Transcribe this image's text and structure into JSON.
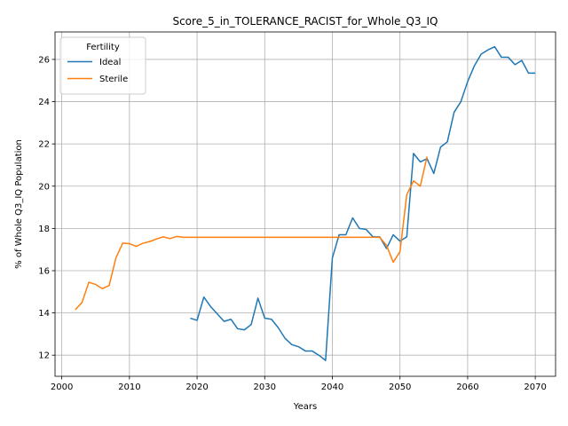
{
  "chart_data": {
    "type": "line",
    "title": "Score_5_in_TOLERANCE_RACIST_for_Whole_Q3_IQ",
    "xlabel": "Years",
    "ylabel": "% of Whole Q3_IQ Population",
    "xlim": [
      1999,
      2073
    ],
    "ylim": [
      11.0,
      27.3
    ],
    "xticks": [
      2000,
      2010,
      2020,
      2030,
      2040,
      2050,
      2060,
      2070
    ],
    "yticks": [
      12,
      14,
      16,
      18,
      20,
      22,
      24,
      26
    ],
    "grid": true,
    "legend": {
      "title": "Fertility",
      "placement": "upper-left"
    },
    "series": [
      {
        "name": "Ideal",
        "color": "#1f77b4",
        "x": [
          2019,
          2020,
          2021,
          2022,
          2023,
          2024,
          2025,
          2026,
          2027,
          2028,
          2029,
          2030,
          2031,
          2032,
          2033,
          2034,
          2035,
          2036,
          2037,
          2038,
          2039,
          2040,
          2041,
          2042,
          2043,
          2044,
          2045,
          2046,
          2047,
          2048,
          2049,
          2050,
          2051,
          2052,
          2053,
          2054,
          2055,
          2056,
          2057,
          2058,
          2059,
          2060,
          2061,
          2062,
          2063,
          2064,
          2065,
          2066,
          2067,
          2068,
          2069,
          2070
        ],
        "values": [
          13.75,
          13.65,
          14.75,
          14.3,
          13.95,
          13.6,
          13.7,
          13.25,
          13.2,
          13.45,
          14.7,
          13.75,
          13.7,
          13.3,
          12.8,
          12.5,
          12.4,
          12.2,
          12.2,
          12.0,
          11.75,
          16.6,
          17.7,
          17.7,
          18.5,
          18.0,
          17.95,
          17.6,
          17.6,
          17.05,
          17.7,
          17.4,
          17.6,
          21.55,
          21.15,
          21.3,
          20.6,
          21.85,
          22.1,
          23.5,
          24.0,
          24.95,
          25.7,
          26.25,
          26.45,
          26.6,
          26.1,
          26.1,
          25.75,
          25.95,
          25.35,
          25.35
        ]
      },
      {
        "name": "Sterile",
        "color": "#ff7f0e",
        "x": [
          2002,
          2003,
          2004,
          2005,
          2006,
          2007,
          2008,
          2009,
          2010,
          2011,
          2012,
          2013,
          2014,
          2015,
          2016,
          2017,
          2018,
          2019,
          2020,
          2021,
          2022,
          2023,
          2024,
          2025,
          2026,
          2027,
          2028,
          2029,
          2030,
          2031,
          2032,
          2033,
          2034,
          2035,
          2036,
          2037,
          2038,
          2039,
          2040,
          2041,
          2042,
          2043,
          2044,
          2045,
          2046,
          2047,
          2048,
          2049,
          2050,
          2051,
          2052,
          2053,
          2054
        ],
        "values": [
          14.15,
          14.5,
          15.45,
          15.35,
          15.15,
          15.3,
          16.6,
          17.3,
          17.28,
          17.15,
          17.3,
          17.38,
          17.5,
          17.6,
          17.52,
          17.62,
          17.58,
          17.58,
          17.58,
          17.58,
          17.58,
          17.58,
          17.58,
          17.58,
          17.58,
          17.58,
          17.58,
          17.58,
          17.58,
          17.58,
          17.58,
          17.58,
          17.58,
          17.58,
          17.58,
          17.58,
          17.58,
          17.58,
          17.58,
          17.58,
          17.58,
          17.58,
          17.58,
          17.58,
          17.58,
          17.58,
          17.2,
          16.4,
          16.9,
          19.6,
          20.25,
          20.0,
          21.4
        ]
      }
    ]
  }
}
